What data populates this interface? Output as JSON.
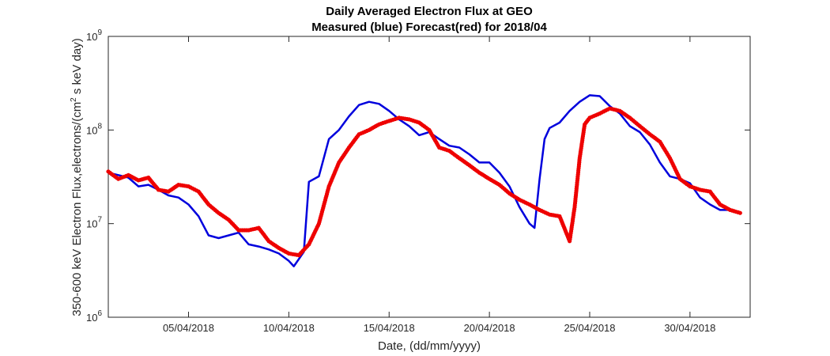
{
  "chart_data": {
    "type": "line",
    "title": "Daily Averaged Electron Flux at GEO",
    "subtitle": "Measured (blue) Forecast(red) for 2018/04",
    "xlabel": "Date, (dd/mm/yyyy)",
    "ylabel": "350-600 keV Electron Flux,electrons/(cm² s keV day)",
    "ylabel_parts": [
      "350-600 keV Electron Flux,electrons/(cm",
      "2",
      " s keV day)"
    ],
    "yscale": "log",
    "xlim": [
      "2018-04-01",
      "2018-05-03"
    ],
    "ylim": [
      1000000,
      1000000000
    ],
    "xticks": [
      {
        "date": "2018-04-05",
        "label": "05/04/2018"
      },
      {
        "date": "2018-04-10",
        "label": "10/04/2018"
      },
      {
        "date": "2018-04-15",
        "label": "15/04/2018"
      },
      {
        "date": "2018-04-20",
        "label": "20/04/2018"
      },
      {
        "date": "2018-04-25",
        "label": "25/04/2018"
      },
      {
        "date": "2018-04-30",
        "label": "30/04/2018"
      }
    ],
    "yticks": [
      {
        "value": 1000000,
        "base": "10",
        "exp": "6"
      },
      {
        "value": 10000000,
        "base": "10",
        "exp": "7"
      },
      {
        "value": 100000000,
        "base": "10",
        "exp": "8"
      },
      {
        "value": 1000000000,
        "base": "10",
        "exp": "9"
      }
    ],
    "grid": false,
    "series": [
      {
        "color": "#0000dd",
        "style": "line",
        "points": [
          [
            "2018-04-01T00:00",
            35000000.0
          ],
          [
            "2018-04-01T12:00",
            33000000.0
          ],
          [
            "2018-04-02T00:00",
            31000000.0
          ],
          [
            "2018-04-02T12:00",
            25000000.0
          ],
          [
            "2018-04-03T00:00",
            26000000.0
          ],
          [
            "2018-04-03T12:00",
            23000000.0
          ],
          [
            "2018-04-04T00:00",
            20000000.0
          ],
          [
            "2018-04-04T12:00",
            19000000.0
          ],
          [
            "2018-04-05T00:00",
            16000000.0
          ],
          [
            "2018-04-05T12:00",
            12000000.0
          ],
          [
            "2018-04-06T00:00",
            7500000.0
          ],
          [
            "2018-04-06T12:00",
            7000000.0
          ],
          [
            "2018-04-07T00:00",
            7500000.0
          ],
          [
            "2018-04-07T12:00",
            8000000.0
          ],
          [
            "2018-04-08T00:00",
            6000000.0
          ],
          [
            "2018-04-08T12:00",
            5700000.0
          ],
          [
            "2018-04-09T00:00",
            5300000.0
          ],
          [
            "2018-04-09T12:00",
            4800000.0
          ],
          [
            "2018-04-10T00:00",
            4000000.0
          ],
          [
            "2018-04-10T06:00",
            3500000.0
          ],
          [
            "2018-04-10T18:00",
            5000000.0
          ],
          [
            "2018-04-11T00:00",
            28000000.0
          ],
          [
            "2018-04-11T12:00",
            32000000.0
          ],
          [
            "2018-04-12T00:00",
            80000000.0
          ],
          [
            "2018-04-12T12:00",
            100000000.0
          ],
          [
            "2018-04-13T00:00",
            140000000.0
          ],
          [
            "2018-04-13T12:00",
            185000000.0
          ],
          [
            "2018-04-14T00:00",
            200000000.0
          ],
          [
            "2018-04-14T12:00",
            190000000.0
          ],
          [
            "2018-04-15T00:00",
            160000000.0
          ],
          [
            "2018-04-15T12:00",
            130000000.0
          ],
          [
            "2018-04-16T00:00",
            110000000.0
          ],
          [
            "2018-04-16T12:00",
            88000000.0
          ],
          [
            "2018-04-17T00:00",
            95000000.0
          ],
          [
            "2018-04-17T12:00",
            80000000.0
          ],
          [
            "2018-04-18T00:00",
            68000000.0
          ],
          [
            "2018-04-18T12:00",
            65000000.0
          ],
          [
            "2018-04-19T00:00",
            55000000.0
          ],
          [
            "2018-04-19T12:00",
            45000000.0
          ],
          [
            "2018-04-20T00:00",
            45000000.0
          ],
          [
            "2018-04-20T12:00",
            35000000.0
          ],
          [
            "2018-04-21T00:00",
            25000000.0
          ],
          [
            "2018-04-21T12:00",
            15000000.0
          ],
          [
            "2018-04-22T00:00",
            10000000.0
          ],
          [
            "2018-04-22T06:00",
            9000000.0
          ],
          [
            "2018-04-22T12:00",
            30000000.0
          ],
          [
            "2018-04-22T18:00",
            80000000.0
          ],
          [
            "2018-04-23T00:00",
            105000000.0
          ],
          [
            "2018-04-23T12:00",
            120000000.0
          ],
          [
            "2018-04-24T00:00",
            160000000.0
          ],
          [
            "2018-04-24T12:00",
            200000000.0
          ],
          [
            "2018-04-25T00:00",
            235000000.0
          ],
          [
            "2018-04-25T12:00",
            230000000.0
          ],
          [
            "2018-04-26T00:00",
            180000000.0
          ],
          [
            "2018-04-26T12:00",
            150000000.0
          ],
          [
            "2018-04-27T00:00",
            110000000.0
          ],
          [
            "2018-04-27T12:00",
            95000000.0
          ],
          [
            "2018-04-28T00:00",
            70000000.0
          ],
          [
            "2018-04-28T12:00",
            45000000.0
          ],
          [
            "2018-04-29T00:00",
            32000000.0
          ],
          [
            "2018-04-29T12:00",
            30000000.0
          ],
          [
            "2018-04-30T00:00",
            27000000.0
          ],
          [
            "2018-04-30T12:00",
            19000000.0
          ],
          [
            "2018-05-01T00:00",
            16000000.0
          ],
          [
            "2018-05-01T12:00",
            14000000.0
          ],
          [
            "2018-05-02T00:00",
            14000000.0
          ],
          [
            "2018-05-02T12:00",
            13000000.0
          ]
        ]
      },
      {
        "color": "#ee0000",
        "style": "dots",
        "points": [
          [
            "2018-04-01T00:00",
            36000000.0
          ],
          [
            "2018-04-01T12:00",
            30000000.0
          ],
          [
            "2018-04-02T00:00",
            33000000.0
          ],
          [
            "2018-04-02T12:00",
            29000000.0
          ],
          [
            "2018-04-03T00:00",
            31000000.0
          ],
          [
            "2018-04-03T12:00",
            23000000.0
          ],
          [
            "2018-04-04T00:00",
            22000000.0
          ],
          [
            "2018-04-04T12:00",
            26000000.0
          ],
          [
            "2018-04-05T00:00",
            25000000.0
          ],
          [
            "2018-04-05T12:00",
            22000000.0
          ],
          [
            "2018-04-06T00:00",
            16000000.0
          ],
          [
            "2018-04-06T12:00",
            13000000.0
          ],
          [
            "2018-04-07T00:00",
            11000000.0
          ],
          [
            "2018-04-07T12:00",
            8500000.0
          ],
          [
            "2018-04-08T00:00",
            8500000.0
          ],
          [
            "2018-04-08T12:00",
            9000000.0
          ],
          [
            "2018-04-09T00:00",
            6500000.0
          ],
          [
            "2018-04-09T12:00",
            5500000.0
          ],
          [
            "2018-04-10T00:00",
            4800000.0
          ],
          [
            "2018-04-10T12:00",
            4600000.0
          ],
          [
            "2018-04-11T00:00",
            6000000.0
          ],
          [
            "2018-04-11T12:00",
            10000000.0
          ],
          [
            "2018-04-12T00:00",
            25000000.0
          ],
          [
            "2018-04-12T12:00",
            45000000.0
          ],
          [
            "2018-04-13T00:00",
            65000000.0
          ],
          [
            "2018-04-13T12:00",
            90000000.0
          ],
          [
            "2018-04-14T00:00",
            100000000.0
          ],
          [
            "2018-04-14T12:00",
            115000000.0
          ],
          [
            "2018-04-15T00:00",
            125000000.0
          ],
          [
            "2018-04-15T12:00",
            135000000.0
          ],
          [
            "2018-04-16T00:00",
            130000000.0
          ],
          [
            "2018-04-16T12:00",
            120000000.0
          ],
          [
            "2018-04-17T00:00",
            100000000.0
          ],
          [
            "2018-04-17T12:00",
            65000000.0
          ],
          [
            "2018-04-18T00:00",
            60000000.0
          ],
          [
            "2018-04-18T12:00",
            50000000.0
          ],
          [
            "2018-04-19T00:00",
            42000000.0
          ],
          [
            "2018-04-19T12:00",
            35000000.0
          ],
          [
            "2018-04-20T00:00",
            30000000.0
          ],
          [
            "2018-04-20T12:00",
            26000000.0
          ],
          [
            "2018-04-21T00:00",
            21000000.0
          ],
          [
            "2018-04-21T12:00",
            18000000.0
          ],
          [
            "2018-04-22T00:00",
            16000000.0
          ],
          [
            "2018-04-22T12:00",
            14000000.0
          ],
          [
            "2018-04-23T00:00",
            12500000.0
          ],
          [
            "2018-04-23T12:00",
            12000000.0
          ],
          [
            "2018-04-24T00:00",
            6500000.0
          ],
          [
            "2018-04-24T06:00",
            15000000.0
          ],
          [
            "2018-04-24T12:00",
            50000000.0
          ],
          [
            "2018-04-24T18:00",
            115000000.0
          ],
          [
            "2018-04-25T00:00",
            135000000.0
          ],
          [
            "2018-04-25T12:00",
            150000000.0
          ],
          [
            "2018-04-26T00:00",
            170000000.0
          ],
          [
            "2018-04-26T12:00",
            160000000.0
          ],
          [
            "2018-04-27T00:00",
            135000000.0
          ],
          [
            "2018-04-27T12:00",
            110000000.0
          ],
          [
            "2018-04-28T00:00",
            90000000.0
          ],
          [
            "2018-04-28T12:00",
            75000000.0
          ],
          [
            "2018-04-29T00:00",
            50000000.0
          ],
          [
            "2018-04-29T12:00",
            30000000.0
          ],
          [
            "2018-04-30T00:00",
            25000000.0
          ],
          [
            "2018-04-30T12:00",
            23000000.0
          ],
          [
            "2018-05-01T00:00",
            22000000.0
          ],
          [
            "2018-05-01T12:00",
            16000000.0
          ],
          [
            "2018-05-02T00:00",
            14000000.0
          ],
          [
            "2018-05-02T12:00",
            13000000.0
          ]
        ]
      }
    ]
  }
}
